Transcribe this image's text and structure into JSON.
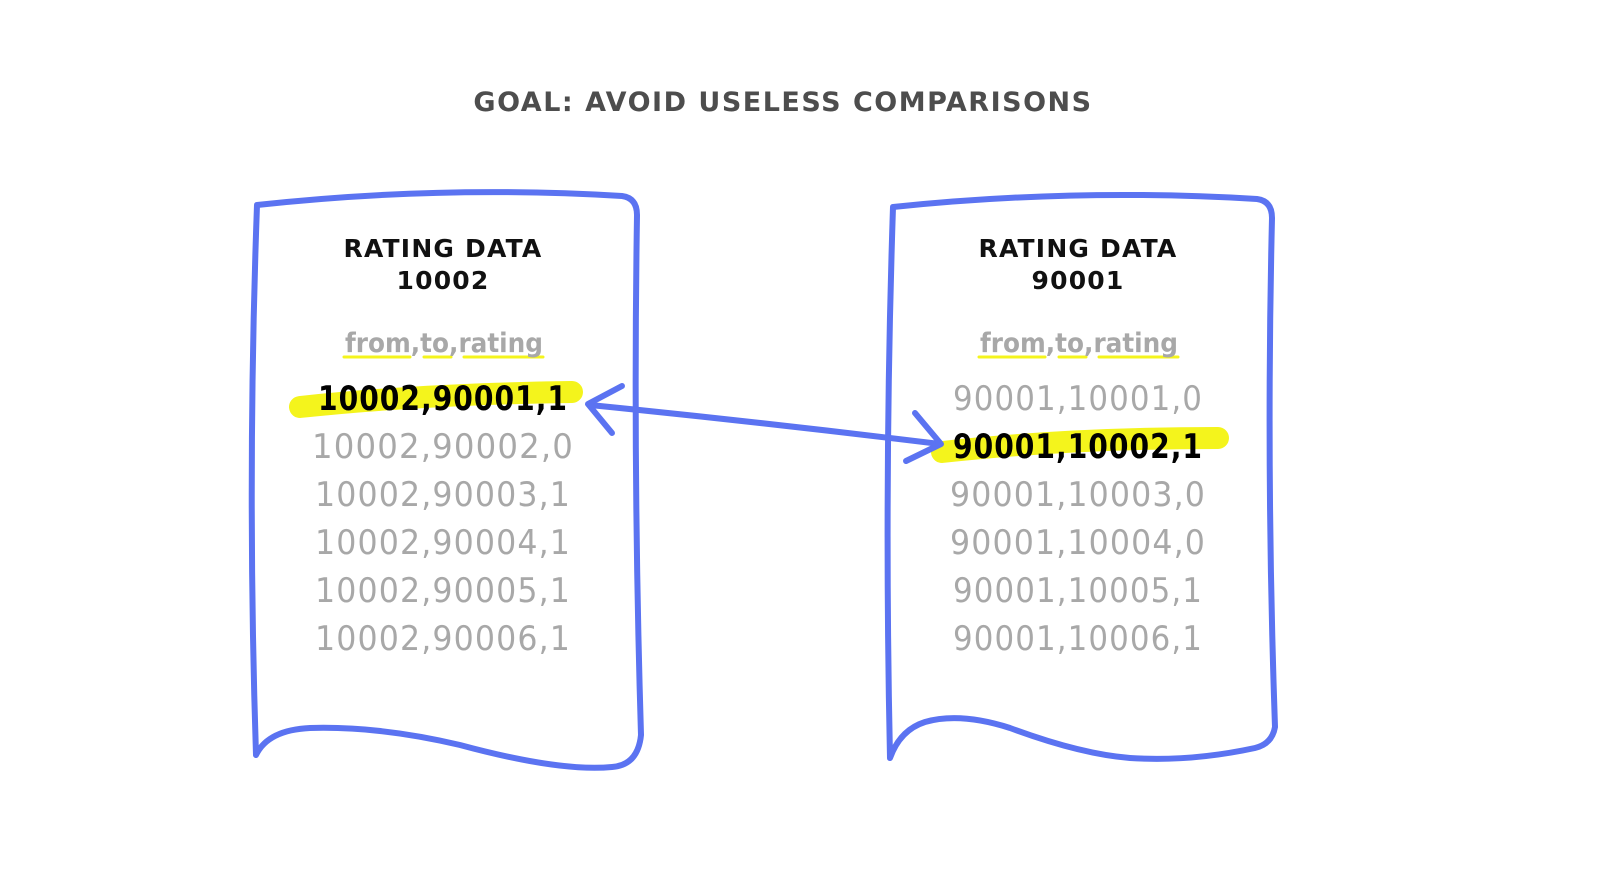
{
  "title": "GOAL: AVOID USELESS COMPARISONS",
  "colors": {
    "outline": "#5b73f1",
    "highlight": "#f4f41c",
    "muted_text": "#a8a8a8",
    "title_text": "#4d4d4d"
  },
  "documents": [
    {
      "title_line1": "RATING DATA",
      "title_line2": "10002",
      "header": {
        "from": "from",
        "to": "to",
        "rating": "rating",
        "separator": ","
      },
      "rows": [
        "10002,90001,1",
        "10002,90002,0",
        "10002,90003,1",
        "10002,90004,1",
        "10002,90005,1",
        "10002,90006,1"
      ],
      "highlighted_row": 0
    },
    {
      "title_line1": "RATING DATA",
      "title_line2": "90001",
      "header": {
        "from": "from",
        "to": "to",
        "rating": "rating",
        "separator": ","
      },
      "rows": [
        "90001,10001,0",
        "90001,10002,1",
        "90001,10003,0",
        "90001,10004,0",
        "90001,10005,1",
        "90001,10006,1"
      ],
      "highlighted_row": 1
    }
  ],
  "link": {
    "from_document": 0,
    "from_row": 0,
    "to_document": 1,
    "to_row": 1,
    "direction": "bidirectional"
  }
}
